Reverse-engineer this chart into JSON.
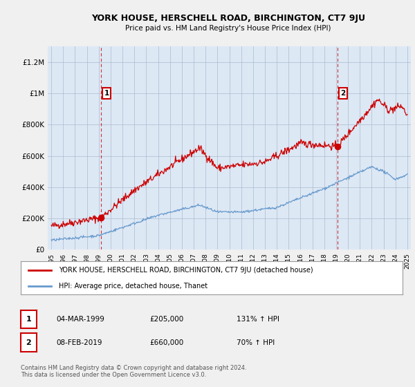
{
  "title": "YORK HOUSE, HERSCHELL ROAD, BIRCHINGTON, CT7 9JU",
  "subtitle": "Price paid vs. HM Land Registry's House Price Index (HPI)",
  "red_label": "YORK HOUSE, HERSCHELL ROAD, BIRCHINGTON, CT7 9JU (detached house)",
  "blue_label": "HPI: Average price, detached house, Thanet",
  "annotation1": {
    "label": "1",
    "date": "04-MAR-1999",
    "price": "£205,000",
    "pct": "131% ↑ HPI"
  },
  "annotation2": {
    "label": "2",
    "date": "08-FEB-2019",
    "price": "£660,000",
    "pct": "70% ↑ HPI"
  },
  "footer": "Contains HM Land Registry data © Crown copyright and database right 2024.\nThis data is licensed under the Open Government Licence v3.0.",
  "ylim": [
    0,
    1300000
  ],
  "yticks": [
    0,
    200000,
    400000,
    600000,
    800000,
    1000000,
    1200000
  ],
  "ytick_labels": [
    "£0",
    "£200K",
    "£400K",
    "£600K",
    "£800K",
    "£1M",
    "£1.2M"
  ],
  "background_color": "#f0f0f0",
  "plot_bg_color": "#dde8f5",
  "plot_bg_color2": "#ffffff",
  "red_color": "#cc0000",
  "blue_color": "#6699cc",
  "grid_color": "#aabbcc",
  "dashed_color": "#cc0000",
  "t1": 1999.17,
  "t2": 2019.1,
  "p1": 205000,
  "p2": 660000
}
